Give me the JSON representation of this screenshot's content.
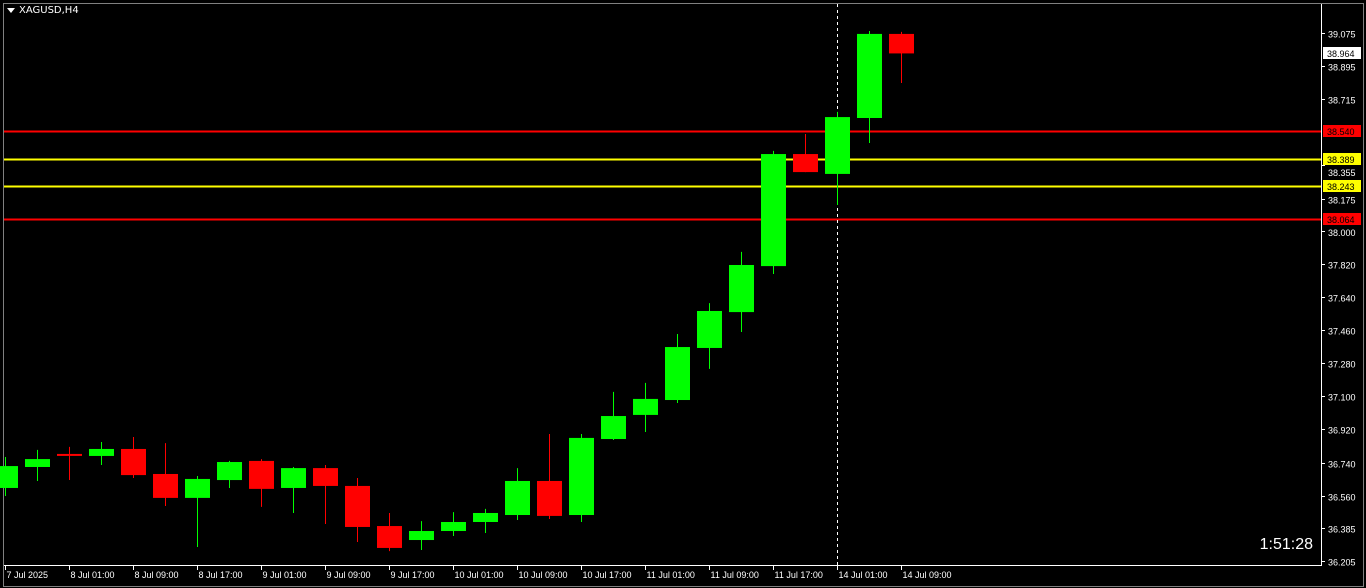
{
  "window": {
    "symbol_timeframe": "XAGUSD,H4",
    "countdown_timer": "1:51:28"
  },
  "colors": {
    "bull": "#00ff00",
    "bear": "#ff0000",
    "background": "#000000",
    "axis_text": "#ffffff",
    "level_red": "#ff0000",
    "level_yellow": "#ffff00",
    "bid_label_bg": "#ffffff"
  },
  "chart_data": {
    "type": "candlestick",
    "symbol": "XAGUSD",
    "timeframe": "H4",
    "ylim": [
      36.205,
      39.075
    ],
    "grid": false,
    "price_ticks": [
      "39.075",
      "38.895",
      "38.715",
      "38.355",
      "38.175",
      "38.000",
      "37.820",
      "37.640",
      "37.460",
      "37.280",
      "37.100",
      "36.920",
      "36.740",
      "36.560",
      "36.385",
      "36.205"
    ],
    "time_ticks": [
      {
        "candle": 0,
        "label": "7 Jul 2025"
      },
      {
        "candle": 2,
        "label": "8 Jul 01:00"
      },
      {
        "candle": 4,
        "label": "8 Jul 09:00"
      },
      {
        "candle": 6,
        "label": "8 Jul 17:00"
      },
      {
        "candle": 8,
        "label": "9 Jul 01:00"
      },
      {
        "candle": 10,
        "label": "9 Jul 09:00"
      },
      {
        "candle": 12,
        "label": "9 Jul 17:00"
      },
      {
        "candle": 14,
        "label": "10 Jul 01:00"
      },
      {
        "candle": 16,
        "label": "10 Jul 09:00"
      },
      {
        "candle": 18,
        "label": "10 Jul 17:00"
      },
      {
        "candle": 20,
        "label": "11 Jul 01:00"
      },
      {
        "candle": 22,
        "label": "11 Jul 09:00"
      },
      {
        "candle": 24,
        "label": "11 Jul 17:00"
      },
      {
        "candle": 26,
        "label": "14 Jul 01:00"
      },
      {
        "candle": 28,
        "label": "14 Jul 09:00"
      }
    ],
    "candles": [
      [
        36.602,
        36.77,
        36.558,
        36.721
      ],
      [
        36.716,
        36.809,
        36.64,
        36.759
      ],
      [
        36.787,
        36.825,
        36.645,
        36.781
      ],
      [
        36.776,
        36.852,
        36.727,
        36.814
      ],
      [
        36.814,
        36.879,
        36.656,
        36.672
      ],
      [
        36.678,
        36.846,
        36.504,
        36.548
      ],
      [
        36.548,
        36.667,
        36.281,
        36.651
      ],
      [
        36.645,
        36.749,
        36.602,
        36.743
      ],
      [
        36.749,
        36.759,
        36.499,
        36.597
      ],
      [
        36.602,
        36.716,
        36.466,
        36.71
      ],
      [
        36.71,
        36.727,
        36.406,
        36.613
      ],
      [
        36.613,
        36.656,
        36.308,
        36.39
      ],
      [
        36.395,
        36.466,
        36.259,
        36.276
      ],
      [
        36.319,
        36.422,
        36.265,
        36.368
      ],
      [
        36.368,
        36.471,
        36.341,
        36.417
      ],
      [
        36.417,
        36.488,
        36.357,
        36.466
      ],
      [
        36.455,
        36.71,
        36.428,
        36.64
      ],
      [
        36.64,
        36.895,
        36.433,
        36.45
      ],
      [
        36.455,
        36.895,
        36.417,
        36.874
      ],
      [
        36.868,
        37.124,
        36.863,
        36.993
      ],
      [
        36.999,
        37.173,
        36.906,
        37.086
      ],
      [
        37.08,
        37.439,
        37.064,
        37.368
      ],
      [
        37.363,
        37.607,
        37.249,
        37.564
      ],
      [
        37.558,
        37.885,
        37.45,
        37.814
      ],
      [
        37.808,
        38.434,
        37.765,
        38.417
      ],
      [
        38.417,
        38.526,
        38.319,
        38.319
      ],
      [
        38.309,
        38.646,
        38.14,
        38.618
      ],
      [
        38.613,
        39.086,
        38.477,
        39.07
      ],
      [
        39.07,
        39.081,
        38.803,
        38.964
      ]
    ],
    "candle_format": [
      "open",
      "high",
      "low",
      "close"
    ],
    "levels": [
      {
        "price": "38.540",
        "color": "#ff0000"
      },
      {
        "price": "38.389",
        "color": "#ffff00"
      },
      {
        "price": "38.243",
        "color": "#ffff00"
      },
      {
        "price": "38.064",
        "color": "#ff0000"
      }
    ],
    "bid": "38.964",
    "crosshair_candle": 26
  }
}
